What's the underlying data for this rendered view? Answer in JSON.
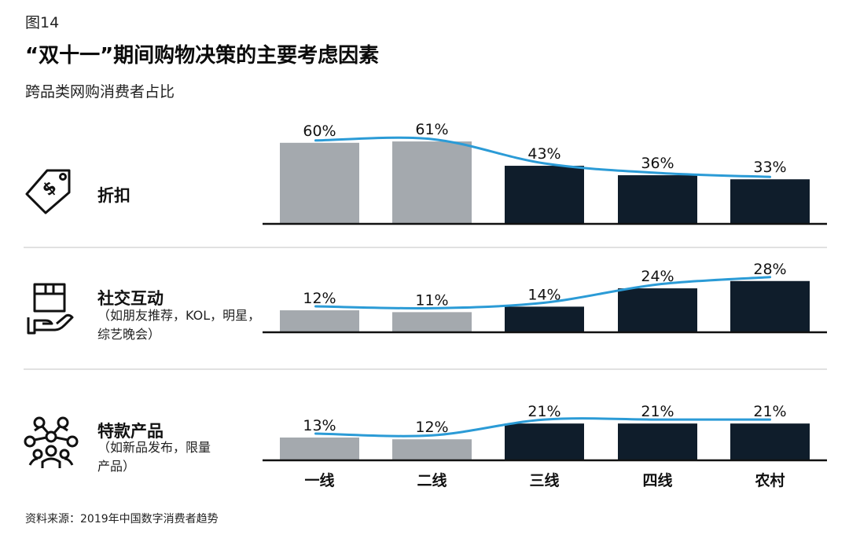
{
  "figure_label": "图14",
  "source": "资料来源：2019年中国数字消费者趋势",
  "colors": {
    "gray": "#a4a9ae",
    "dark": "#0f1d2b",
    "line": "#2b9bd6",
    "divider": "#cfcfcf"
  },
  "chart_data": {
    "type": "bar",
    "title": "“双十一”期间购物决策的主要考虑因素",
    "subtitle": "跨品类网购消费者占比",
    "categories": [
      "一线",
      "二线",
      "三线",
      "四线",
      "农村"
    ],
    "panels": [
      {
        "label": "折扣",
        "note": "",
        "icon": "price-tag-icon",
        "values": [
          60,
          61,
          43,
          36,
          33
        ],
        "value_labels": [
          "60%",
          "61%",
          "43%",
          "36%",
          "33%"
        ]
      },
      {
        "label": "社交互动",
        "note": "（如朋友推荐，KOL，明星，综艺晚会）",
        "icon": "box-hand-icon",
        "values": [
          12,
          11,
          14,
          24,
          28
        ],
        "value_labels": [
          "12%",
          "11%",
          "14%",
          "24%",
          "28%"
        ]
      },
      {
        "label": "特款产品",
        "note": "（如新品发布，限量产品）",
        "icon": "network-people-icon",
        "values": [
          13,
          12,
          21,
          21,
          21
        ],
        "value_labels": [
          "13%",
          "12%",
          "21%",
          "21%",
          "21%"
        ]
      }
    ],
    "bar_colors": [
      "gray",
      "gray",
      "dark",
      "dark",
      "dark"
    ],
    "trend_line": true,
    "grid": false
  }
}
